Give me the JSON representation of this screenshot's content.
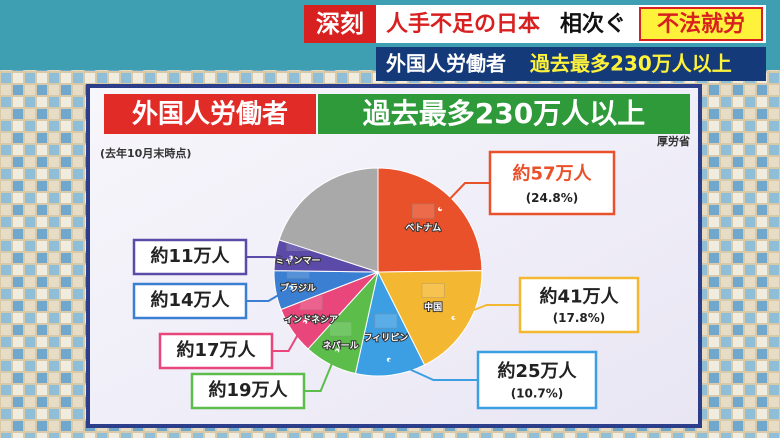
{
  "banner": {
    "tag": "深刻",
    "headline": "人手不足の日本",
    "headline2": "相次ぐ",
    "highlight": "不法就労",
    "ticker_left": "外国人労働者",
    "ticker_right": "過去最多230万人以上"
  },
  "chart_data": {
    "type": "pie",
    "title": "外国人労働者",
    "subtitle": "過去最多230万人以上",
    "source": "厚労省",
    "note": "(去年10月末時点)",
    "categories": [
      "ベトナム",
      "中国",
      "フィリピン",
      "ネパール",
      "インドネシア",
      "ブラジル",
      "ミャンマー",
      null
    ],
    "values": [
      57,
      41,
      25,
      19,
      17,
      14,
      11,
      46
    ],
    "value_labels": [
      "約57万人",
      "約41万人",
      "約25万人",
      "約19万人",
      "約17万人",
      "約14万人",
      "約11万人",
      null
    ],
    "share_labels": [
      "(24.8%)",
      "(17.8%)",
      "(10.7%)",
      null,
      null,
      null,
      null,
      null
    ],
    "colors": [
      "#e9512b",
      "#f4b731",
      "#3d9fe3",
      "#5cbd4b",
      "#e9477b",
      "#3a7fd2",
      "#5c4aa8",
      "#a9a9a9"
    ]
  }
}
